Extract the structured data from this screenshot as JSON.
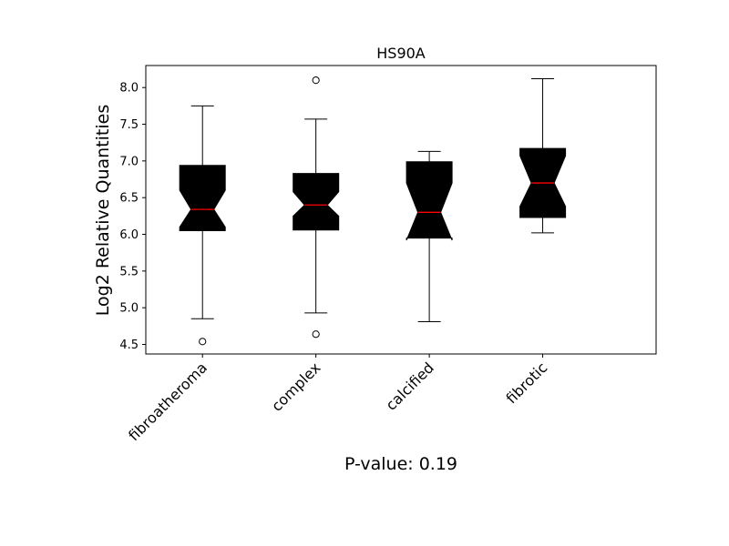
{
  "chart_data": {
    "type": "boxplot",
    "title": "HS90A",
    "xlabel": "",
    "ylabel": "Log2 Relative Quantities",
    "annotation": "P-value: 0.19",
    "notched": true,
    "box_color": "#000000",
    "median_color": "#ff0000",
    "ylim": [
      4.37,
      8.3
    ],
    "yticks": [
      "4.5",
      "5.0",
      "5.5",
      "6.0",
      "6.5",
      "7.0",
      "7.5",
      "8.0"
    ],
    "categories": [
      "fibroatheroma",
      "complex",
      "calcified",
      "fibrotic"
    ],
    "boxes": [
      {
        "whisker_low": 4.85,
        "q1": 6.05,
        "median": 6.34,
        "q3": 6.94,
        "whisker_high": 7.75,
        "notch_low": 6.1,
        "notch_high": 6.6,
        "outliers": [
          4.54
        ]
      },
      {
        "whisker_low": 4.93,
        "q1": 6.06,
        "median": 6.4,
        "q3": 6.83,
        "whisker_high": 7.57,
        "notch_low": 6.25,
        "notch_high": 6.58,
        "outliers": [
          8.1,
          4.64
        ]
      },
      {
        "whisker_low": 4.81,
        "q1": 5.95,
        "median": 6.3,
        "q3": 6.99,
        "whisker_high": 7.13,
        "notch_low": 5.92,
        "notch_high": 6.7,
        "outliers": []
      },
      {
        "whisker_low": 6.02,
        "q1": 6.23,
        "median": 6.7,
        "q3": 7.17,
        "whisker_high": 8.12,
        "notch_low": 6.38,
        "notch_high": 7.07,
        "outliers": []
      }
    ]
  }
}
